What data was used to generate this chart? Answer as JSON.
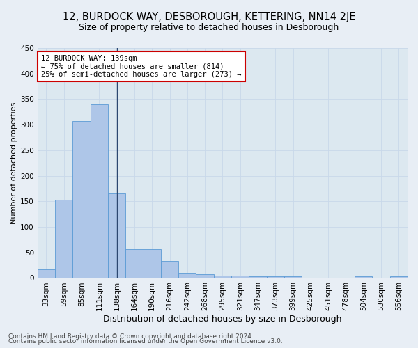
{
  "title": "12, BURDOCK WAY, DESBOROUGH, KETTERING, NN14 2JE",
  "subtitle": "Size of property relative to detached houses in Desborough",
  "xlabel": "Distribution of detached houses by size in Desborough",
  "ylabel": "Number of detached properties",
  "bin_labels": [
    "33sqm",
    "59sqm",
    "85sqm",
    "111sqm",
    "138sqm",
    "164sqm",
    "190sqm",
    "216sqm",
    "242sqm",
    "268sqm",
    "295sqm",
    "321sqm",
    "347sqm",
    "373sqm",
    "399sqm",
    "425sqm",
    "451sqm",
    "478sqm",
    "504sqm",
    "530sqm",
    "556sqm"
  ],
  "bar_heights": [
    17,
    153,
    307,
    340,
    166,
    57,
    57,
    33,
    10,
    8,
    5,
    5,
    4,
    4,
    4,
    0,
    0,
    0,
    4,
    0,
    4
  ],
  "bar_color": "#aec6e8",
  "bar_edge_color": "#5b9bd5",
  "vline_bin_index": 4,
  "vline_color": "#2c4770",
  "annotation_line1": "12 BURDOCK WAY: 139sqm",
  "annotation_line2": "← 75% of detached houses are smaller (814)",
  "annotation_line3": "25% of semi-detached houses are larger (273) →",
  "annotation_box_edgecolor": "#cc0000",
  "annotation_bg_color": "#ffffff",
  "ylim": [
    0,
    450
  ],
  "yticks": [
    0,
    50,
    100,
    150,
    200,
    250,
    300,
    350,
    400,
    450
  ],
  "grid_color": "#c8d8ea",
  "plot_bg_color": "#dce8f0",
  "fig_bg_color": "#e8eef5",
  "footnote1": "Contains HM Land Registry data © Crown copyright and database right 2024.",
  "footnote2": "Contains public sector information licensed under the Open Government Licence v3.0.",
  "title_fontsize": 10.5,
  "subtitle_fontsize": 9,
  "xlabel_fontsize": 9,
  "ylabel_fontsize": 8,
  "tick_fontsize": 7.5,
  "annotation_fontsize": 7.5,
  "footnote_fontsize": 6.5
}
